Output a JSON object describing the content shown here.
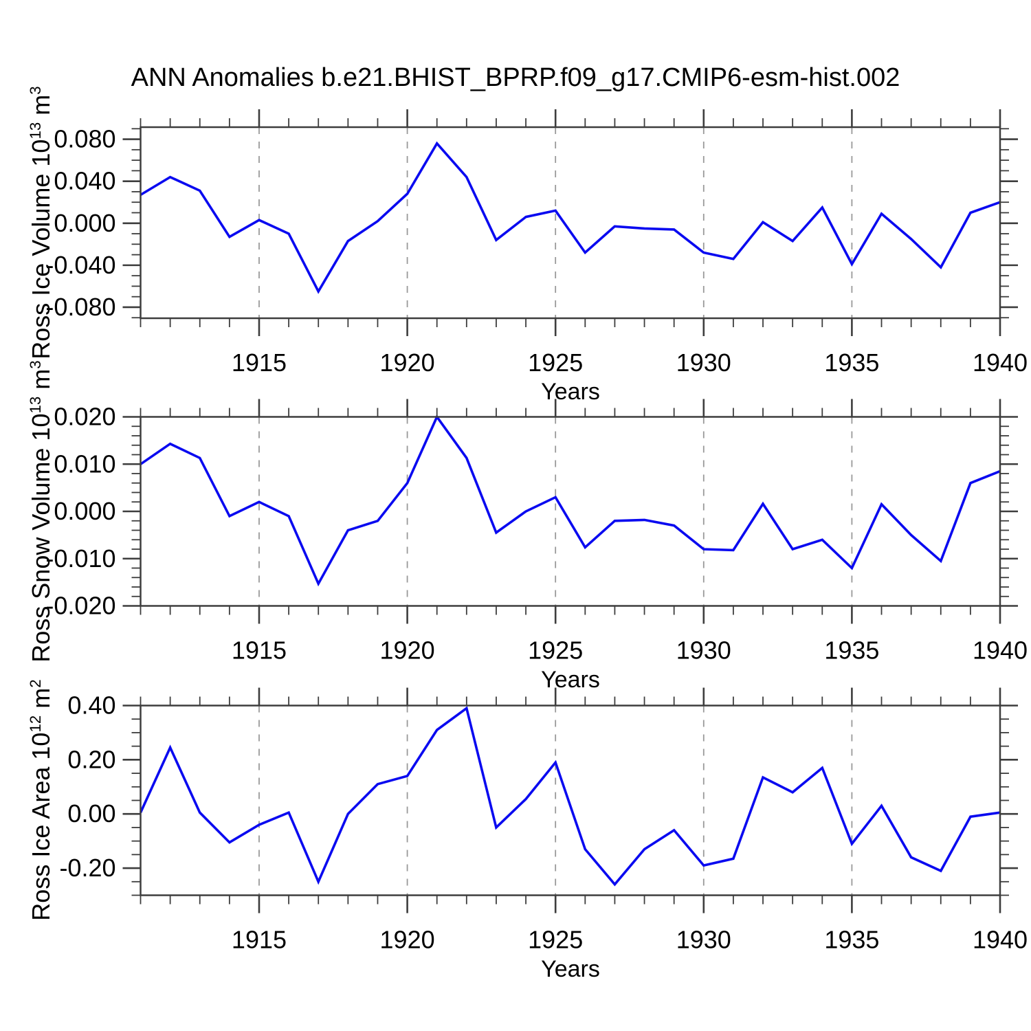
{
  "title": "ANN Anomalies b.e21.BHIST_BPRP.f09_g17.CMIP6-esm-hist.002",
  "colors": {
    "line": "#0a0af0",
    "axis": "#3d3d3d",
    "grid": "#999999",
    "text": "#000000",
    "background": "#ffffff"
  },
  "x_axis": {
    "label": "Years",
    "range": [
      1911,
      1940
    ],
    "major_ticks": [
      1915,
      1920,
      1925,
      1930,
      1935,
      1940
    ],
    "tick_labels": [
      "1915",
      "1920",
      "1925",
      "1930",
      "1935",
      "1940"
    ],
    "minor_step": 1,
    "gridlines": [
      1915,
      1920,
      1925,
      1930,
      1935
    ]
  },
  "chart_data": {
    "type": "line",
    "title": "ANN Anomalies b.e21.BHIST_BPRP.f09_g17.CMIP6-esm-hist.002",
    "xlabel": "Years",
    "legend": "none",
    "grid": "vertical-dashed",
    "x": [
      1911,
      1912,
      1913,
      1914,
      1915,
      1916,
      1917,
      1918,
      1919,
      1920,
      1921,
      1922,
      1923,
      1924,
      1925,
      1926,
      1927,
      1928,
      1929,
      1930,
      1931,
      1932,
      1933,
      1934,
      1935,
      1936,
      1937,
      1938,
      1939,
      1940
    ],
    "panels": [
      {
        "name": "ross-ice-volume",
        "ylabel": {
          "text": "Ross Ice Volume 10",
          "sup": "13",
          "unit": " m",
          "unit_sup": "3"
        },
        "ylim": [
          -0.0905,
          0.0915
        ],
        "y_major": [
          0.08,
          0.04,
          0.0,
          -0.04,
          -0.08
        ],
        "y_tick_labels": [
          "0.080",
          "0.040",
          "0.000",
          "-0.040",
          "-0.080"
        ],
        "y_minor_step": 0.01,
        "values": [
          0.027,
          0.044,
          0.031,
          -0.013,
          0.003,
          -0.01,
          -0.065,
          -0.017,
          0.002,
          0.028,
          0.076,
          0.044,
          -0.016,
          0.006,
          0.012,
          -0.028,
          -0.003,
          -0.005,
          -0.006,
          -0.028,
          -0.034,
          0.001,
          -0.017,
          0.015,
          -0.039,
          0.009,
          -0.015,
          -0.042,
          0.01,
          0.02
        ]
      },
      {
        "name": "ross-snow-volume",
        "ylabel": {
          "text": "Ross Snow Volume 10",
          "sup": "13",
          "unit": " m",
          "unit_sup": "3"
        },
        "ylim": [
          -0.02,
          0.02
        ],
        "y_major": [
          0.02,
          0.01,
          0.0,
          -0.01,
          -0.02
        ],
        "y_tick_labels": [
          "0.020",
          "0.010",
          "0.000",
          "-0.010",
          "-0.020"
        ],
        "y_minor_step": 0.002,
        "values": [
          0.01,
          0.0143,
          0.0113,
          -0.001,
          0.002,
          -0.001,
          -0.0153,
          -0.004,
          -0.002,
          0.006,
          0.02,
          0.0113,
          -0.0045,
          0.0,
          0.003,
          -0.0076,
          -0.002,
          -0.0018,
          -0.003,
          -0.008,
          -0.0082,
          0.0016,
          -0.008,
          -0.006,
          -0.012,
          0.0015,
          -0.005,
          -0.0105,
          0.006,
          0.0085
        ]
      },
      {
        "name": "ross-ice-area",
        "ylabel": {
          "text": "Ross Ice Area 10",
          "sup": "12",
          "unit": " m",
          "unit_sup": "2"
        },
        "ylim": [
          -0.3,
          0.4
        ],
        "y_major": [
          0.4,
          0.2,
          0.0,
          -0.2
        ],
        "y_tick_labels": [
          "0.40",
          "0.20",
          "0.00",
          "-0.20"
        ],
        "y_minor_step": 0.05,
        "values": [
          0.005,
          0.245,
          0.005,
          -0.105,
          -0.04,
          0.005,
          -0.25,
          0.0,
          0.11,
          0.14,
          0.31,
          0.39,
          -0.05,
          0.055,
          0.19,
          -0.13,
          -0.26,
          -0.13,
          -0.06,
          -0.19,
          -0.165,
          0.135,
          0.08,
          0.17,
          -0.11,
          0.03,
          -0.16,
          -0.21,
          -0.01,
          0.005
        ]
      }
    ]
  }
}
